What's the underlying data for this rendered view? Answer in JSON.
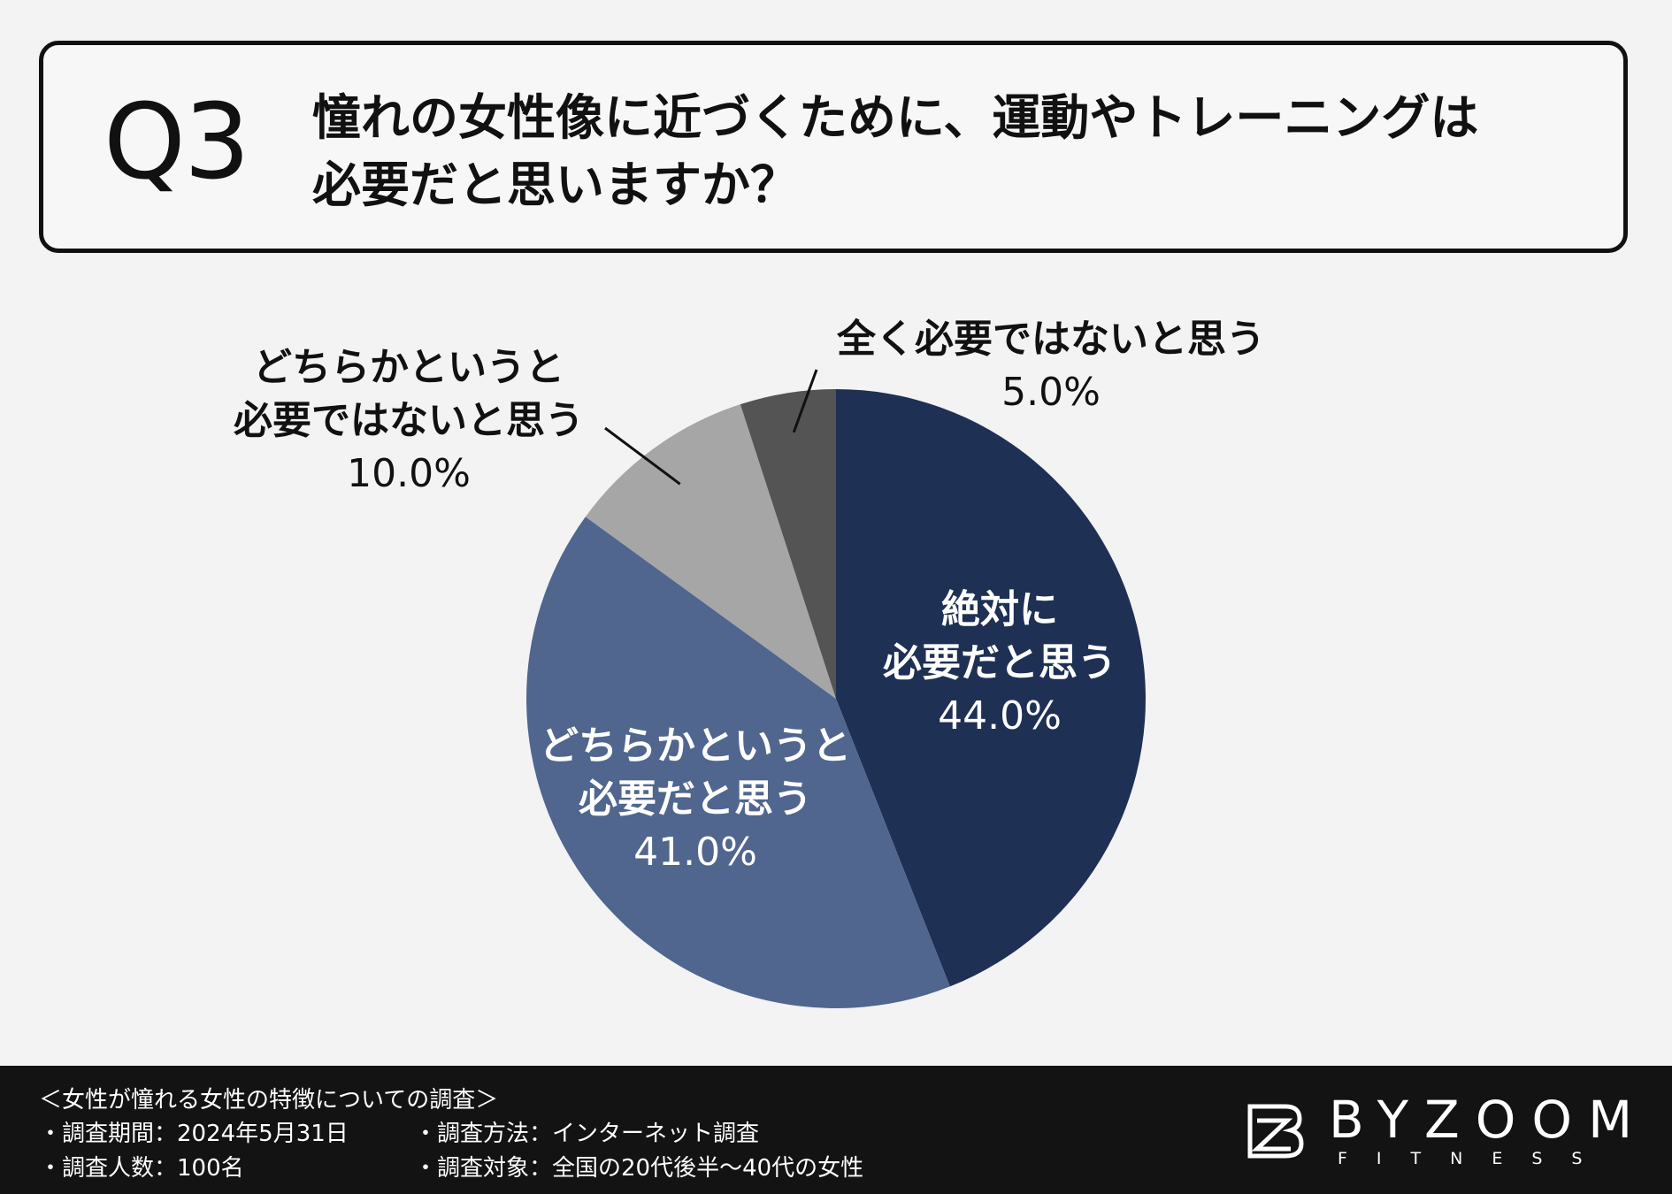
{
  "question": {
    "number": "Q3",
    "line1": "憧れの女性像に近づくために、運動やトレーニングは",
    "line2": "必要だと思いますか？"
  },
  "chart_data": {
    "type": "pie",
    "start_angle_deg": 0,
    "direction": "clockwise",
    "slices": [
      {
        "label_lines": [
          "絶対に",
          "必要だと思う"
        ],
        "value": 44.0,
        "value_label": "44.0%",
        "color": "#1f3055"
      },
      {
        "label_lines": [
          "どちらかというと",
          "必要だと思う"
        ],
        "value": 41.0,
        "value_label": "41.0%",
        "color": "#50668e"
      },
      {
        "label_lines": [
          "どちらかというと",
          "必要ではないと思う"
        ],
        "value": 10.0,
        "value_label": "10.0%",
        "color": "#a6a6a6"
      },
      {
        "label_lines": [
          "全く必要ではないと思う"
        ],
        "value": 5.0,
        "value_label": "5.0%",
        "color": "#545454"
      }
    ]
  },
  "footer": {
    "survey_title": "＜女性が憧れる女性の特徴についての調査＞",
    "period": "・調査期間：2024年5月31日",
    "method": "・調査方法：インターネット調査",
    "count": "・調査人数：100名",
    "target": "・調査対象：全国の20代後半〜40代の女性",
    "brand": "BYZOOM",
    "brand_sub": "FITNESS"
  }
}
